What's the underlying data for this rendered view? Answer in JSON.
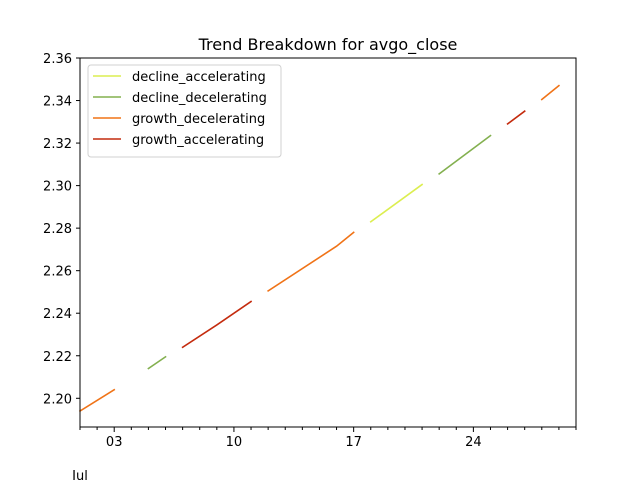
{
  "chart_data": {
    "type": "line",
    "title": "Trend Breakdown for avgo_close",
    "xlabel": "",
    "ylabel": "",
    "xlim": [
      "2024-07-01",
      "2024-07-30"
    ],
    "ylim": [
      2.1865,
      2.36
    ],
    "y_ticks": [
      2.2,
      2.22,
      2.24,
      2.26,
      2.28,
      2.3,
      2.32,
      2.34,
      2.36
    ],
    "y_tick_labels": [
      "2.20",
      "2.22",
      "2.24",
      "2.26",
      "2.28",
      "2.30",
      "2.32",
      "2.34",
      "2.36"
    ],
    "x_major_ticks": [
      "2024-07-03",
      "2024-07-10",
      "2024-07-17",
      "2024-07-24"
    ],
    "x_major_tick_labels": [
      "03",
      "10",
      "17",
      "24"
    ],
    "x_minor_ticks": [
      "2024-07-01",
      "2024-07-02",
      "2024-07-04",
      "2024-07-05",
      "2024-07-06",
      "2024-07-07",
      "2024-07-08",
      "2024-07-09",
      "2024-07-11",
      "2024-07-12",
      "2024-07-13",
      "2024-07-14",
      "2024-07-15",
      "2024-07-16",
      "2024-07-18",
      "2024-07-19",
      "2024-07-20",
      "2024-07-21",
      "2024-07-22",
      "2024-07-23",
      "2024-07-25",
      "2024-07-26",
      "2024-07-27",
      "2024-07-28",
      "2024-07-29",
      "2024-07-30"
    ],
    "x_offset_label": "Jul",
    "grid": false,
    "legend_position": "top-left",
    "series": [
      {
        "name": "decline_accelerating",
        "color": "#dcee50",
        "segments": [
          [
            [
              "2024-07-18",
              2.283
            ],
            [
              "2024-07-21",
              2.3005
            ]
          ]
        ]
      },
      {
        "name": "decline_decelerating",
        "color": "#83b04f",
        "segments": [
          [
            [
              "2024-07-05",
              2.214
            ],
            [
              "2024-07-06",
              2.2195
            ]
          ],
          [
            [
              "2024-07-22",
              2.3055
            ],
            [
              "2024-07-25",
              2.3235
            ]
          ]
        ]
      },
      {
        "name": "growth_decelerating",
        "color": "#f07317",
        "segments": [
          [
            [
              "2024-07-01",
              2.194
            ],
            [
              "2024-07-03",
              2.204
            ]
          ],
          [
            [
              "2024-07-12",
              2.2505
            ],
            [
              "2024-07-16",
              2.2715
            ],
            [
              "2024-07-17",
              2.278
            ]
          ],
          [
            [
              "2024-07-28",
              2.3405
            ],
            [
              "2024-07-29",
              2.347
            ]
          ]
        ]
      },
      {
        "name": "growth_accelerating",
        "color": "#c42b0e",
        "segments": [
          [
            [
              "2024-07-07",
              2.224
            ],
            [
              "2024-07-09",
              2.2345
            ],
            [
              "2024-07-11",
              2.2455
            ]
          ],
          [
            [
              "2024-07-26",
              2.329
            ],
            [
              "2024-07-27",
              2.335
            ]
          ]
        ]
      }
    ]
  }
}
